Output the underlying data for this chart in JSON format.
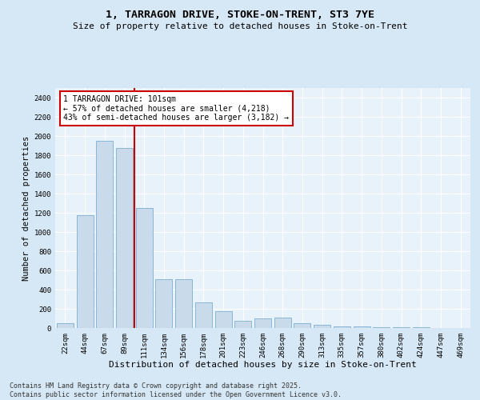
{
  "title": "1, TARRAGON DRIVE, STOKE-ON-TRENT, ST3 7YE",
  "subtitle": "Size of property relative to detached houses in Stoke-on-Trent",
  "xlabel": "Distribution of detached houses by size in Stoke-on-Trent",
  "ylabel": "Number of detached properties",
  "categories": [
    "22sqm",
    "44sqm",
    "67sqm",
    "89sqm",
    "111sqm",
    "134sqm",
    "156sqm",
    "178sqm",
    "201sqm",
    "223sqm",
    "246sqm",
    "268sqm",
    "290sqm",
    "313sqm",
    "335sqm",
    "357sqm",
    "380sqm",
    "402sqm",
    "424sqm",
    "447sqm",
    "469sqm"
  ],
  "values": [
    50,
    1175,
    1950,
    1875,
    1250,
    510,
    510,
    270,
    175,
    75,
    100,
    110,
    50,
    35,
    20,
    15,
    10,
    8,
    5,
    3,
    2
  ],
  "bar_color": "#c9daea",
  "bar_edge_color": "#7bafd4",
  "vline_x_index": 3.5,
  "vline_color": "#cc0000",
  "annotation_text": "1 TARRAGON DRIVE: 101sqm\n← 57% of detached houses are smaller (4,218)\n43% of semi-detached houses are larger (3,182) →",
  "annotation_box_color": "#ffffff",
  "annotation_box_edge": "#cc0000",
  "ylim": [
    0,
    2500
  ],
  "yticks": [
    0,
    200,
    400,
    600,
    800,
    1000,
    1200,
    1400,
    1600,
    1800,
    2000,
    2200,
    2400
  ],
  "bg_color": "#d6e8f5",
  "plot_bg_color": "#e8f2fb",
  "footer": "Contains HM Land Registry data © Crown copyright and database right 2025.\nContains public sector information licensed under the Open Government Licence v3.0.",
  "title_fontsize": 9.5,
  "subtitle_fontsize": 8,
  "xlabel_fontsize": 8,
  "ylabel_fontsize": 7.5,
  "tick_fontsize": 6.5,
  "annotation_fontsize": 7,
  "footer_fontsize": 6
}
